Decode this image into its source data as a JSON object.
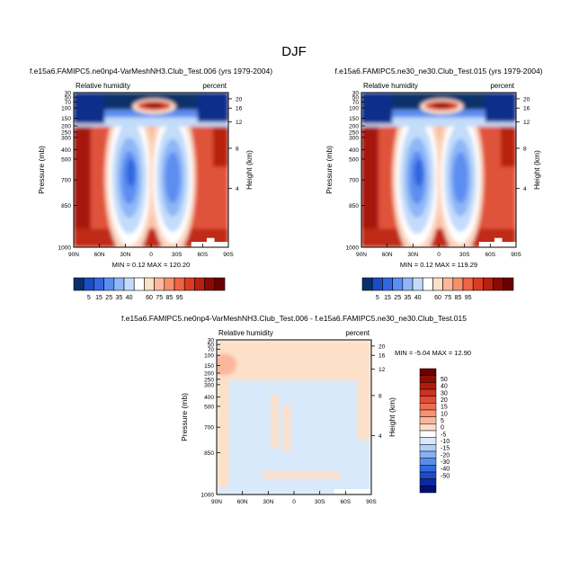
{
  "page_title": "DJF",
  "chart_data": [
    {
      "type": "contour",
      "title": "f.e15a6.FAMIPC5.ne0np4-VarMeshNH3.Club_Test.006 (yrs 1979-2004)",
      "left_label": "Relative humidity",
      "right_label": "percent",
      "ylabel": "Pressure (mb)",
      "y2label": "Height (km)",
      "y_ticks": [
        "30",
        "50",
        "70",
        "100",
        "150",
        "200",
        "250",
        "300",
        "400",
        "500",
        "700",
        "850",
        "1000"
      ],
      "height_ticks": [
        "20",
        "16",
        "12",
        "8",
        "4"
      ],
      "x_ticks": [
        "90N",
        "60N",
        "30N",
        "0",
        "30S",
        "60S",
        "90S"
      ],
      "min_max": "MIN =   0.12  MAX = 120.20",
      "field": "rh"
    },
    {
      "type": "contour",
      "title": "f.e15a6.FAMIPC5.ne30_ne30.Club_Test.015 (yrs 1979-2004)",
      "left_label": "Relative humidity",
      "right_label": "percent",
      "ylabel": "Pressure (mb)",
      "y2label": "Height (km)",
      "y_ticks": [
        "30",
        "50",
        "70",
        "100",
        "150",
        "200",
        "250",
        "300",
        "400",
        "500",
        "700",
        "850",
        "1000"
      ],
      "height_ticks": [
        "20",
        "16",
        "12",
        "8",
        "4"
      ],
      "x_ticks": [
        "90N",
        "60N",
        "30N",
        "0",
        "30S",
        "60S",
        "90S"
      ],
      "min_max": "MIN =   0.12  MAX = 119.29",
      "field": "rh"
    },
    {
      "type": "contour",
      "title": "f.e15a6.FAMIPC5.ne0np4-VarMeshNH3.Club_Test.006 - f.e15a6.FAMIPC5.ne30_ne30.Club_Test.015",
      "left_label": "Relative humidity",
      "right_label": "percent",
      "ylabel": "Pressure (mb)",
      "y2label": "Height (km)",
      "y_ticks": [
        "30",
        "50",
        "70",
        "100",
        "150",
        "200",
        "250",
        "300",
        "400",
        "500",
        "700",
        "850",
        "1000"
      ],
      "height_ticks": [
        "20",
        "16",
        "12",
        "8",
        "4"
      ],
      "x_ticks": [
        "90N",
        "60N",
        "30N",
        "0",
        "30S",
        "60S",
        "90S"
      ],
      "min_max": "MIN =  -5.04  MAX =  12.90",
      "field": "diff"
    }
  ],
  "colorbar_horizontal": {
    "labels": [
      "5",
      "15",
      "25",
      "35",
      "40",
      "60",
      "75",
      "85",
      "95"
    ],
    "colors": [
      "#08306b",
      "#1c4cc4",
      "#3366e0",
      "#5b8ef0",
      "#8fb6f7",
      "#c3dcfa",
      "#ffffff",
      "#fde0c8",
      "#fbb89a",
      "#f78e6c",
      "#ef6444",
      "#db3a24",
      "#b8200f",
      "#8b0a05",
      "#6b0000"
    ]
  },
  "colorbar_vertical": {
    "labels": [
      "50",
      "40",
      "30",
      "20",
      "15",
      "10",
      "5",
      "0",
      "-5",
      "-10",
      "-15",
      "-20",
      "-30",
      "-40",
      "-50"
    ],
    "colors": [
      "#6b0000",
      "#900d05",
      "#b01d0f",
      "#cc3221",
      "#e04d35",
      "#ee6c4f",
      "#f69172",
      "#fab79c",
      "#fddcc8",
      "#ffffff",
      "#d8e9fb",
      "#b1d0f7",
      "#86b0f2",
      "#5a8de9",
      "#336adf",
      "#1f49c7",
      "#0c2a9e",
      "#00117a"
    ]
  }
}
